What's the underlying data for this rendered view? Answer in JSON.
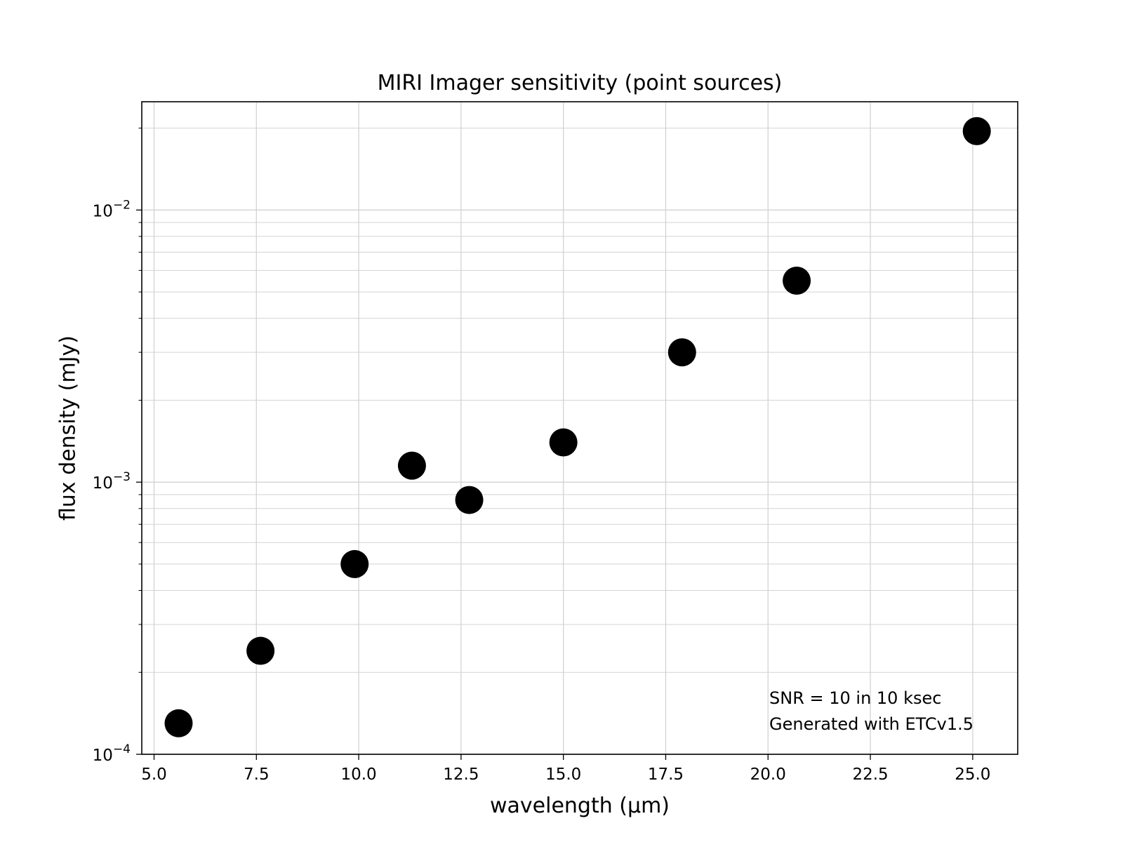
{
  "chart_data": {
    "type": "scatter",
    "title": "MIRI Imager sensitivity (point sources)",
    "xlabel": "wavelength (μm)",
    "ylabel": "flux density (mJy)",
    "xscale": "linear",
    "yscale": "log",
    "xlim": [
      4.7,
      26.1
    ],
    "ylim": [
      0.0001,
      0.025
    ],
    "grid": true,
    "x_ticks": [
      5.0,
      7.5,
      10.0,
      12.5,
      15.0,
      17.5,
      20.0,
      22.5,
      25.0
    ],
    "x_tick_labels": [
      "5.0",
      "7.5",
      "10.0",
      "12.5",
      "15.0",
      "17.5",
      "20.0",
      "22.5",
      "25.0"
    ],
    "y_major_ticks": [
      {
        "value": 0.0001,
        "base": "10",
        "exponent": "−4"
      },
      {
        "value": 0.001,
        "base": "10",
        "exponent": "−3"
      },
      {
        "value": 0.01,
        "base": "10",
        "exponent": "−2"
      }
    ],
    "series": [
      {
        "name": "point sources",
        "color": "#000000",
        "marker": "circle",
        "x": [
          5.6,
          7.6,
          9.9,
          11.3,
          12.7,
          15.0,
          17.9,
          20.7,
          25.1
        ],
        "y": [
          0.00013,
          0.00024,
          0.0005,
          0.00115,
          0.00086,
          0.0014,
          0.003,
          0.0055,
          0.0195
        ]
      }
    ],
    "annotations": [
      "SNR = 10 in 10 ksec",
      "Generated with ETCv1.5"
    ]
  }
}
